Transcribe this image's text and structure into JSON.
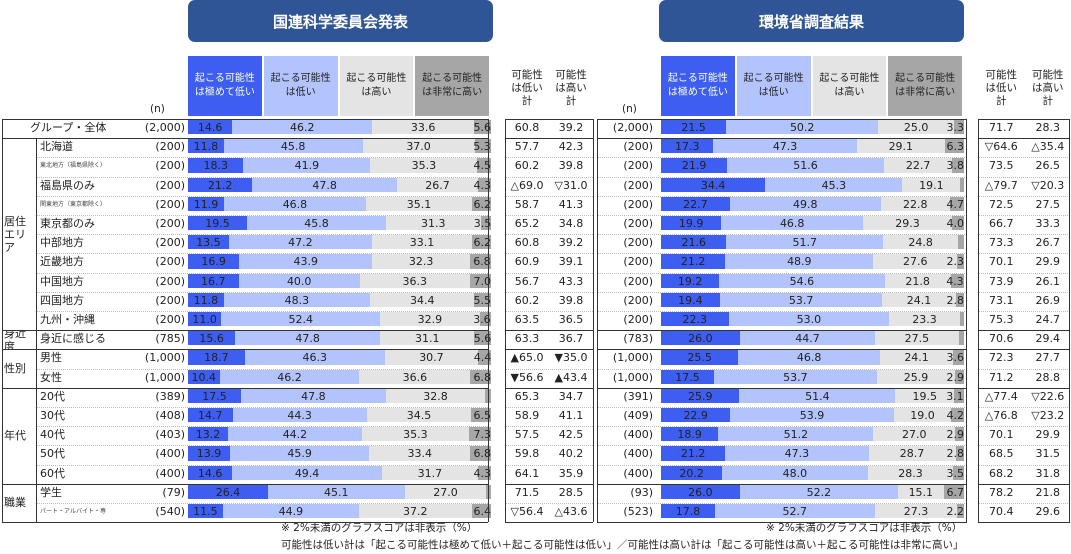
{
  "panels": [
    {
      "title": "国連科学委員会発表",
      "n_header": "(n)",
      "legend": [
        "起こる可能性\nは極めて低い",
        "起こる可能性\nは低い",
        "起こる可能性\nは高い",
        "起こる可能性\nは非常に高い"
      ],
      "sum_headers": [
        "可能性\nは低い\n計",
        "可能性\nは高い\n計"
      ]
    },
    {
      "title": "環境省調査結果",
      "n_header": "(n)",
      "legend": [
        "起こる可能性\nは極めて低い",
        "起こる可能性\nは低い",
        "起こる可能性\nは高い",
        "起こる可能性\nは非常に高い"
      ],
      "sum_headers": [
        "可能性\nは低い\n計",
        "可能性\nは高い\n計"
      ]
    }
  ],
  "colors": [
    "#3d5ef0",
    "#b3c3fb",
    "#e4e4e4",
    "#a6a6a6"
  ],
  "groups": [
    {
      "label": "",
      "start": 0,
      "count": 1
    },
    {
      "label": "居住\nエリア",
      "start": 1,
      "count": 10
    },
    {
      "label": "身近度",
      "start": 11,
      "count": 1
    },
    {
      "label": "性別",
      "start": 12,
      "count": 2
    },
    {
      "label": "年代",
      "start": 14,
      "count": 5
    },
    {
      "label": "職業",
      "start": 19,
      "count": 2
    }
  ],
  "notes": [
    "※ 2%未満のグラフスコアは非表示（%）",
    "※ 2%未満のグラフスコアは非表示（%）",
    "可能性は低い計は「起こる可能性は極めて低い＋起こる可能性は低い」／可能性は高い計は「起こる可能性は高い＋起こる可能性は非常に高い」"
  ],
  "chart_data": [
    {
      "type": "bar",
      "title": "国連科学委員会発表",
      "categories": [
        "グループ・全体",
        "北海道",
        "東北地方（福島県除く）",
        "福島県のみ",
        "関東地方（東京都除く）",
        "東京都のみ",
        "中部地方",
        "近畿地方",
        "中国地方",
        "四国地方",
        "九州・沖縄",
        "身近に感じる計",
        "男性",
        "女性",
        "20代",
        "30代",
        "40代",
        "50代",
        "60代",
        "学生",
        "パート・アルバイト・専業主婦(夫)"
      ],
      "n": [
        "(2,000)",
        "(200)",
        "(200)",
        "(200)",
        "(200)",
        "(200)",
        "(200)",
        "(200)",
        "(200)",
        "(200)",
        "(200)",
        "(785)",
        "(1,000)",
        "(1,000)",
        "(389)",
        "(408)",
        "(403)",
        "(400)",
        "(400)",
        "(79)",
        "(540)"
      ],
      "series": [
        {
          "name": "起こる可能性は極めて低い",
          "values": [
            14.6,
            11.8,
            18.3,
            21.2,
            11.9,
            19.5,
            13.5,
            16.9,
            16.7,
            11.8,
            11.0,
            15.6,
            18.7,
            10.4,
            17.5,
            14.7,
            13.2,
            13.9,
            14.6,
            26.4,
            11.5
          ]
        },
        {
          "name": "起こる可能性は低い",
          "values": [
            46.2,
            45.8,
            41.9,
            47.8,
            46.8,
            45.8,
            47.2,
            43.9,
            40.0,
            48.3,
            52.4,
            47.8,
            46.3,
            46.2,
            47.8,
            44.3,
            44.2,
            45.9,
            49.4,
            45.1,
            44.9
          ]
        },
        {
          "name": "起こる可能性は高い",
          "values": [
            33.6,
            37.0,
            35.3,
            26.7,
            35.1,
            31.3,
            33.1,
            32.3,
            36.3,
            34.4,
            32.9,
            31.1,
            30.7,
            36.6,
            32.8,
            34.5,
            35.3,
            33.4,
            31.7,
            27.0,
            37.2
          ]
        },
        {
          "name": "起こる可能性は非常に高い",
          "values": [
            5.6,
            5.3,
            4.5,
            4.3,
            6.2,
            3.5,
            6.2,
            6.8,
            7.0,
            5.5,
            3.6,
            5.6,
            4.4,
            6.8,
            1.9,
            6.5,
            7.3,
            6.8,
            4.3,
            1.5,
            6.4
          ]
        }
      ],
      "low_total": [
        "60.8",
        "57.7",
        "60.2",
        "△69.0",
        "58.7",
        "65.2",
        "60.8",
        "60.9",
        "56.7",
        "60.2",
        "63.5",
        "63.3",
        "▲65.0",
        "▼56.6",
        "65.3",
        "58.9",
        "57.5",
        "59.8",
        "64.1",
        "71.5",
        "▽56.4"
      ],
      "high_total": [
        "39.2",
        "42.3",
        "39.8",
        "▽31.0",
        "41.3",
        "34.8",
        "39.2",
        "39.1",
        "43.3",
        "39.8",
        "36.5",
        "36.7",
        "▼35.0",
        "▲43.4",
        "34.7",
        "41.1",
        "42.5",
        "40.2",
        "35.9",
        "28.5",
        "△43.6"
      ],
      "xlim": [
        0,
        100
      ]
    },
    {
      "type": "bar",
      "title": "環境省調査結果",
      "categories": [
        "グループ・全体",
        "北海道",
        "東北地方（福島県除く）",
        "福島県のみ",
        "関東地方（東京都除く）",
        "東京都のみ",
        "中部地方",
        "近畿地方",
        "中国地方",
        "四国地方",
        "九州・沖縄",
        "身近に感じる計",
        "男性",
        "女性",
        "20代",
        "30代",
        "40代",
        "50代",
        "60代",
        "学生",
        "パート・アルバイト・専業主婦(夫)"
      ],
      "n": [
        "(2,000)",
        "(200)",
        "(200)",
        "(200)",
        "(200)",
        "(200)",
        "(200)",
        "(200)",
        "(200)",
        "(200)",
        "(200)",
        "(783)",
        "(1,000)",
        "(1,000)",
        "(391)",
        "(409)",
        "(400)",
        "(400)",
        "(400)",
        "(93)",
        "(523)"
      ],
      "series": [
        {
          "name": "起こる可能性は極めて低い",
          "values": [
            21.5,
            17.3,
            21.9,
            34.4,
            22.7,
            19.9,
            21.6,
            21.2,
            19.2,
            19.4,
            22.3,
            26.0,
            25.5,
            17.5,
            25.9,
            22.9,
            18.9,
            21.2,
            20.2,
            26.0,
            17.8
          ]
        },
        {
          "name": "起こる可能性は低い",
          "values": [
            50.2,
            47.3,
            51.6,
            45.3,
            49.8,
            46.8,
            51.7,
            48.9,
            54.6,
            53.7,
            53.0,
            44.7,
            46.8,
            53.7,
            51.4,
            53.9,
            51.2,
            47.3,
            48.0,
            52.2,
            52.7
          ]
        },
        {
          "name": "起こる可能性は高い",
          "values": [
            25.0,
            29.1,
            22.7,
            19.1,
            22.8,
            29.3,
            24.8,
            27.6,
            21.8,
            24.1,
            23.3,
            27.5,
            24.1,
            25.9,
            19.5,
            19.0,
            27.0,
            28.7,
            28.3,
            15.1,
            27.3
          ]
        },
        {
          "name": "起こる可能性は非常に高い",
          "values": [
            3.3,
            6.3,
            3.8,
            1.2,
            4.7,
            4.0,
            1.9,
            2.3,
            4.3,
            2.8,
            1.4,
            1.8,
            3.6,
            2.9,
            3.1,
            4.2,
            2.9,
            2.8,
            3.5,
            6.7,
            2.2
          ]
        }
      ],
      "low_total": [
        "71.7",
        "▽64.6",
        "73.5",
        "△79.7",
        "72.5",
        "66.7",
        "73.3",
        "70.1",
        "73.9",
        "73.1",
        "75.3",
        "70.6",
        "72.3",
        "71.2",
        "△77.4",
        "△76.8",
        "70.1",
        "68.5",
        "68.2",
        "78.2",
        "70.4"
      ],
      "high_total": [
        "28.3",
        "△35.4",
        "26.5",
        "▽20.3",
        "27.5",
        "33.3",
        "26.7",
        "29.9",
        "26.1",
        "26.9",
        "24.7",
        "29.4",
        "27.7",
        "28.8",
        "▽22.6",
        "▽23.2",
        "29.9",
        "31.5",
        "31.8",
        "21.8",
        "29.6"
      ],
      "xlim": [
        0,
        100
      ]
    }
  ]
}
